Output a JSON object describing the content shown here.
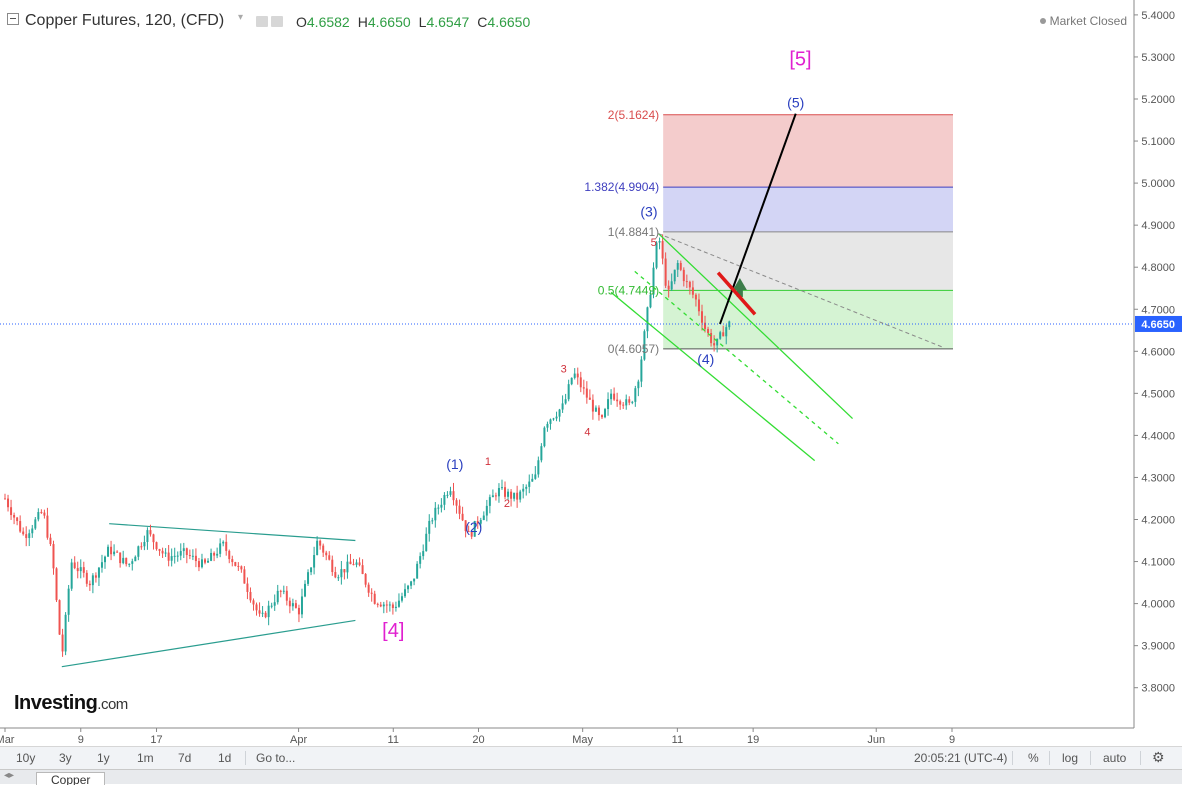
{
  "header": {
    "title": "Copper Futures, 120, (CFD)",
    "ohlc": [
      {
        "k": "O",
        "v": "4.6582"
      },
      {
        "k": "H",
        "v": "4.6650"
      },
      {
        "k": "L",
        "v": "4.6547"
      },
      {
        "k": "C",
        "v": "4.6650"
      }
    ],
    "status": "Market Closed"
  },
  "logo": {
    "main": "Investing",
    "suffix": ".com"
  },
  "toolbar": {
    "ranges": [
      "10y",
      "3y",
      "1y",
      "1m",
      "7d",
      "1d"
    ],
    "goto": "Go to...",
    "time": "20:05:21 (UTC-4)",
    "percent": "%",
    "log": "log",
    "auto": "auto",
    "settings_icon": "gear-icon"
  },
  "tabs": {
    "active": "Copper"
  },
  "colors": {
    "up": "#26a69a",
    "down": "#ef5350",
    "fib_red": "#f4cccc",
    "fib_blue": "#d3d5f5",
    "fib_gray": "#e7e7e7",
    "fib_green": "#d5f3d3",
    "channel": "#33dd33",
    "triangle": "#2a9d8f",
    "magenta": "#e020d0",
    "wave_blue": "#2a3fbf",
    "wave_red": "#d0303a",
    "price_tag": "#2962ff"
  },
  "chart_data": {
    "type": "candlestick",
    "y_axis": {
      "ticks": [
        "5.4000",
        "5.3000",
        "5.2000",
        "5.1000",
        "5.0000",
        "4.9000",
        "4.8000",
        "4.7000",
        "4.6000",
        "4.5000",
        "4.4000",
        "4.3000",
        "4.2000",
        "4.1000",
        "4.0000",
        "3.9000",
        "3.8000"
      ],
      "range": [
        3.72,
        5.42
      ]
    },
    "x_axis": {
      "ticks": [
        {
          "label": "Mar",
          "d": 0
        },
        {
          "label": "9",
          "d": 8
        },
        {
          "label": "17",
          "d": 16
        },
        {
          "label": "Apr",
          "d": 31
        },
        {
          "label": "11",
          "d": 41
        },
        {
          "label": "20",
          "d": 50
        },
        {
          "label": "May",
          "d": 61
        },
        {
          "label": "11",
          "d": 71
        },
        {
          "label": "19",
          "d": 79
        },
        {
          "label": "Jun",
          "d": 92
        },
        {
          "label": "9",
          "d": 100
        }
      ],
      "note": "d = days since Mar 1"
    },
    "last_price": "4.6650",
    "price_path": [
      [
        0,
        4.25
      ],
      [
        2,
        4.16
      ],
      [
        4,
        4.22
      ],
      [
        5,
        4.11
      ],
      [
        6,
        3.87
      ],
      [
        7,
        4.1
      ],
      [
        9,
        4.05
      ],
      [
        11,
        4.13
      ],
      [
        13,
        4.09
      ],
      [
        15,
        4.17
      ],
      [
        17,
        4.11
      ],
      [
        19,
        4.12
      ],
      [
        21,
        4.09
      ],
      [
        23,
        4.14
      ],
      [
        25,
        4.07
      ],
      [
        27,
        3.96
      ],
      [
        29,
        4.03
      ],
      [
        31,
        3.98
      ],
      [
        33,
        4.15
      ],
      [
        35,
        4.07
      ],
      [
        37,
        4.1
      ],
      [
        39,
        4.01
      ],
      [
        41,
        3.99
      ],
      [
        43,
        4.05
      ],
      [
        45,
        4.2
      ],
      [
        47,
        4.28
      ],
      [
        49,
        4.16
      ],
      [
        50,
        4.2
      ],
      [
        52,
        4.27
      ],
      [
        54,
        4.25
      ],
      [
        56,
        4.3
      ],
      [
        57,
        4.43
      ],
      [
        59,
        4.47
      ],
      [
        60,
        4.55
      ],
      [
        62,
        4.47
      ],
      [
        63,
        4.43
      ],
      [
        64,
        4.5
      ],
      [
        66,
        4.47
      ],
      [
        67,
        4.55
      ],
      [
        68,
        4.72
      ],
      [
        69,
        4.88
      ],
      [
        70,
        4.73
      ],
      [
        71,
        4.81
      ],
      [
        72,
        4.76
      ],
      [
        73,
        4.72
      ],
      [
        74,
        4.65
      ],
      [
        75,
        4.61
      ],
      [
        76,
        4.655
      ],
      [
        76.5,
        4.665
      ]
    ],
    "fibonacci": [
      {
        "label": "2(5.1624)",
        "value": 5.1624
      },
      {
        "label": "1.382(4.9904)",
        "value": 4.9904
      },
      {
        "label": "1(4.8841)",
        "value": 4.8841
      },
      {
        "label": "0.5(4.7449)",
        "value": 4.7449
      },
      {
        "label": "0(4.6057)",
        "value": 4.6057
      }
    ],
    "fib_zone_days": [
      69.5,
      100
    ],
    "triangle": {
      "upper": [
        [
          11,
          4.19
        ],
        [
          37,
          4.15
        ]
      ],
      "lower": [
        [
          6,
          3.85
        ],
        [
          37,
          3.96
        ]
      ]
    },
    "wave_labels": [
      {
        "text": "[4]",
        "d": 41,
        "y": 3.92,
        "style": "magenta"
      },
      {
        "text": "[5]",
        "d": 84,
        "y": 5.28,
        "style": "magenta"
      },
      {
        "text": "(1)",
        "d": 47.5,
        "y": 4.32,
        "style": "blue"
      },
      {
        "text": "(2)",
        "d": 49.5,
        "y": 4.17,
        "style": "blue"
      },
      {
        "text": "(3)",
        "d": 68,
        "y": 4.92,
        "style": "blue"
      },
      {
        "text": "(4)",
        "d": 74,
        "y": 4.57,
        "style": "blue"
      },
      {
        "text": "(5)",
        "d": 83.5,
        "y": 5.18,
        "style": "blue"
      },
      {
        "text": "1",
        "d": 51,
        "y": 4.33,
        "style": "red"
      },
      {
        "text": "2",
        "d": 53,
        "y": 4.23,
        "style": "red"
      },
      {
        "text": "3",
        "d": 59,
        "y": 4.55,
        "style": "red"
      },
      {
        "text": "4",
        "d": 61.5,
        "y": 4.4,
        "style": "red"
      },
      {
        "text": "5",
        "d": 68.5,
        "y": 4.85,
        "style": "red"
      }
    ],
    "channel": {
      "upper": [
        [
          69,
          4.88
        ],
        [
          89.5,
          4.44
        ]
      ],
      "middle": [
        [
          66.5,
          4.79
        ],
        [
          88,
          4.38
        ]
      ],
      "lower": [
        [
          64,
          4.74
        ],
        [
          85.5,
          4.34
        ]
      ]
    },
    "dashed_trend": [
      [
        69,
        4.88
      ],
      [
        99,
        4.61
      ]
    ],
    "projection": [
      [
        75.5,
        4.665
      ],
      [
        83.5,
        5.165
      ]
    ]
  }
}
